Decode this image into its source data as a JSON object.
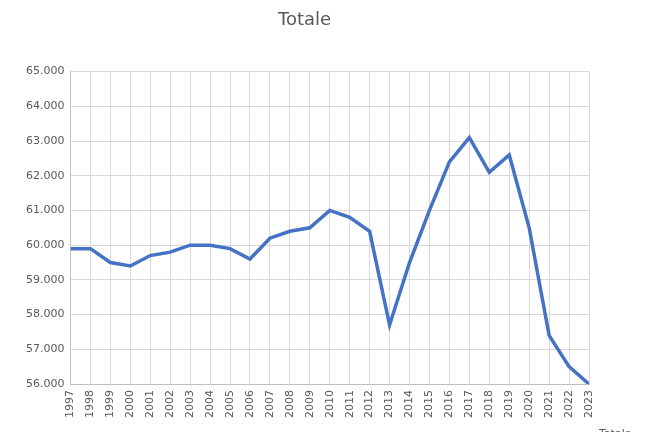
{
  "chart_data": {
    "type": "line",
    "title": "Totale",
    "categories": [
      "1997",
      "1998",
      "1999",
      "2000",
      "2001",
      "2002",
      "2003",
      "2004",
      "2005",
      "2006",
      "2007",
      "2008",
      "2009",
      "2010",
      "2011",
      "2012",
      "2013",
      "2014",
      "2015",
      "2016",
      "2017",
      "2018",
      "2019",
      "2020",
      "2021",
      "2022",
      "2023"
    ],
    "series": [
      {
        "name": "Totale",
        "color": "#4472c4",
        "values": [
          59900,
          59900,
          59500,
          59400,
          59700,
          59800,
          60000,
          60000,
          59900,
          59600,
          60200,
          60400,
          60500,
          61000,
          60800,
          60400,
          57700,
          59500,
          61000,
          62400,
          63100,
          62100,
          62600,
          60500,
          57400,
          56500,
          56000
        ]
      }
    ],
    "marker": "none",
    "ylim": [
      56000,
      65000
    ],
    "yticks": [
      {
        "value": 56000,
        "label": "56.000"
      },
      {
        "value": 57000,
        "label": "57.000"
      },
      {
        "value": 58000,
        "label": "58.000"
      },
      {
        "value": 59000,
        "label": "59.000"
      },
      {
        "value": 60000,
        "label": "60.000"
      },
      {
        "value": 61000,
        "label": "61.000"
      },
      {
        "value": 62000,
        "label": "62.000"
      },
      {
        "value": 63000,
        "label": "63.000"
      },
      {
        "value": 64000,
        "label": "64.000"
      },
      {
        "value": 65000,
        "label": "65.000"
      }
    ],
    "grid": true
  }
}
